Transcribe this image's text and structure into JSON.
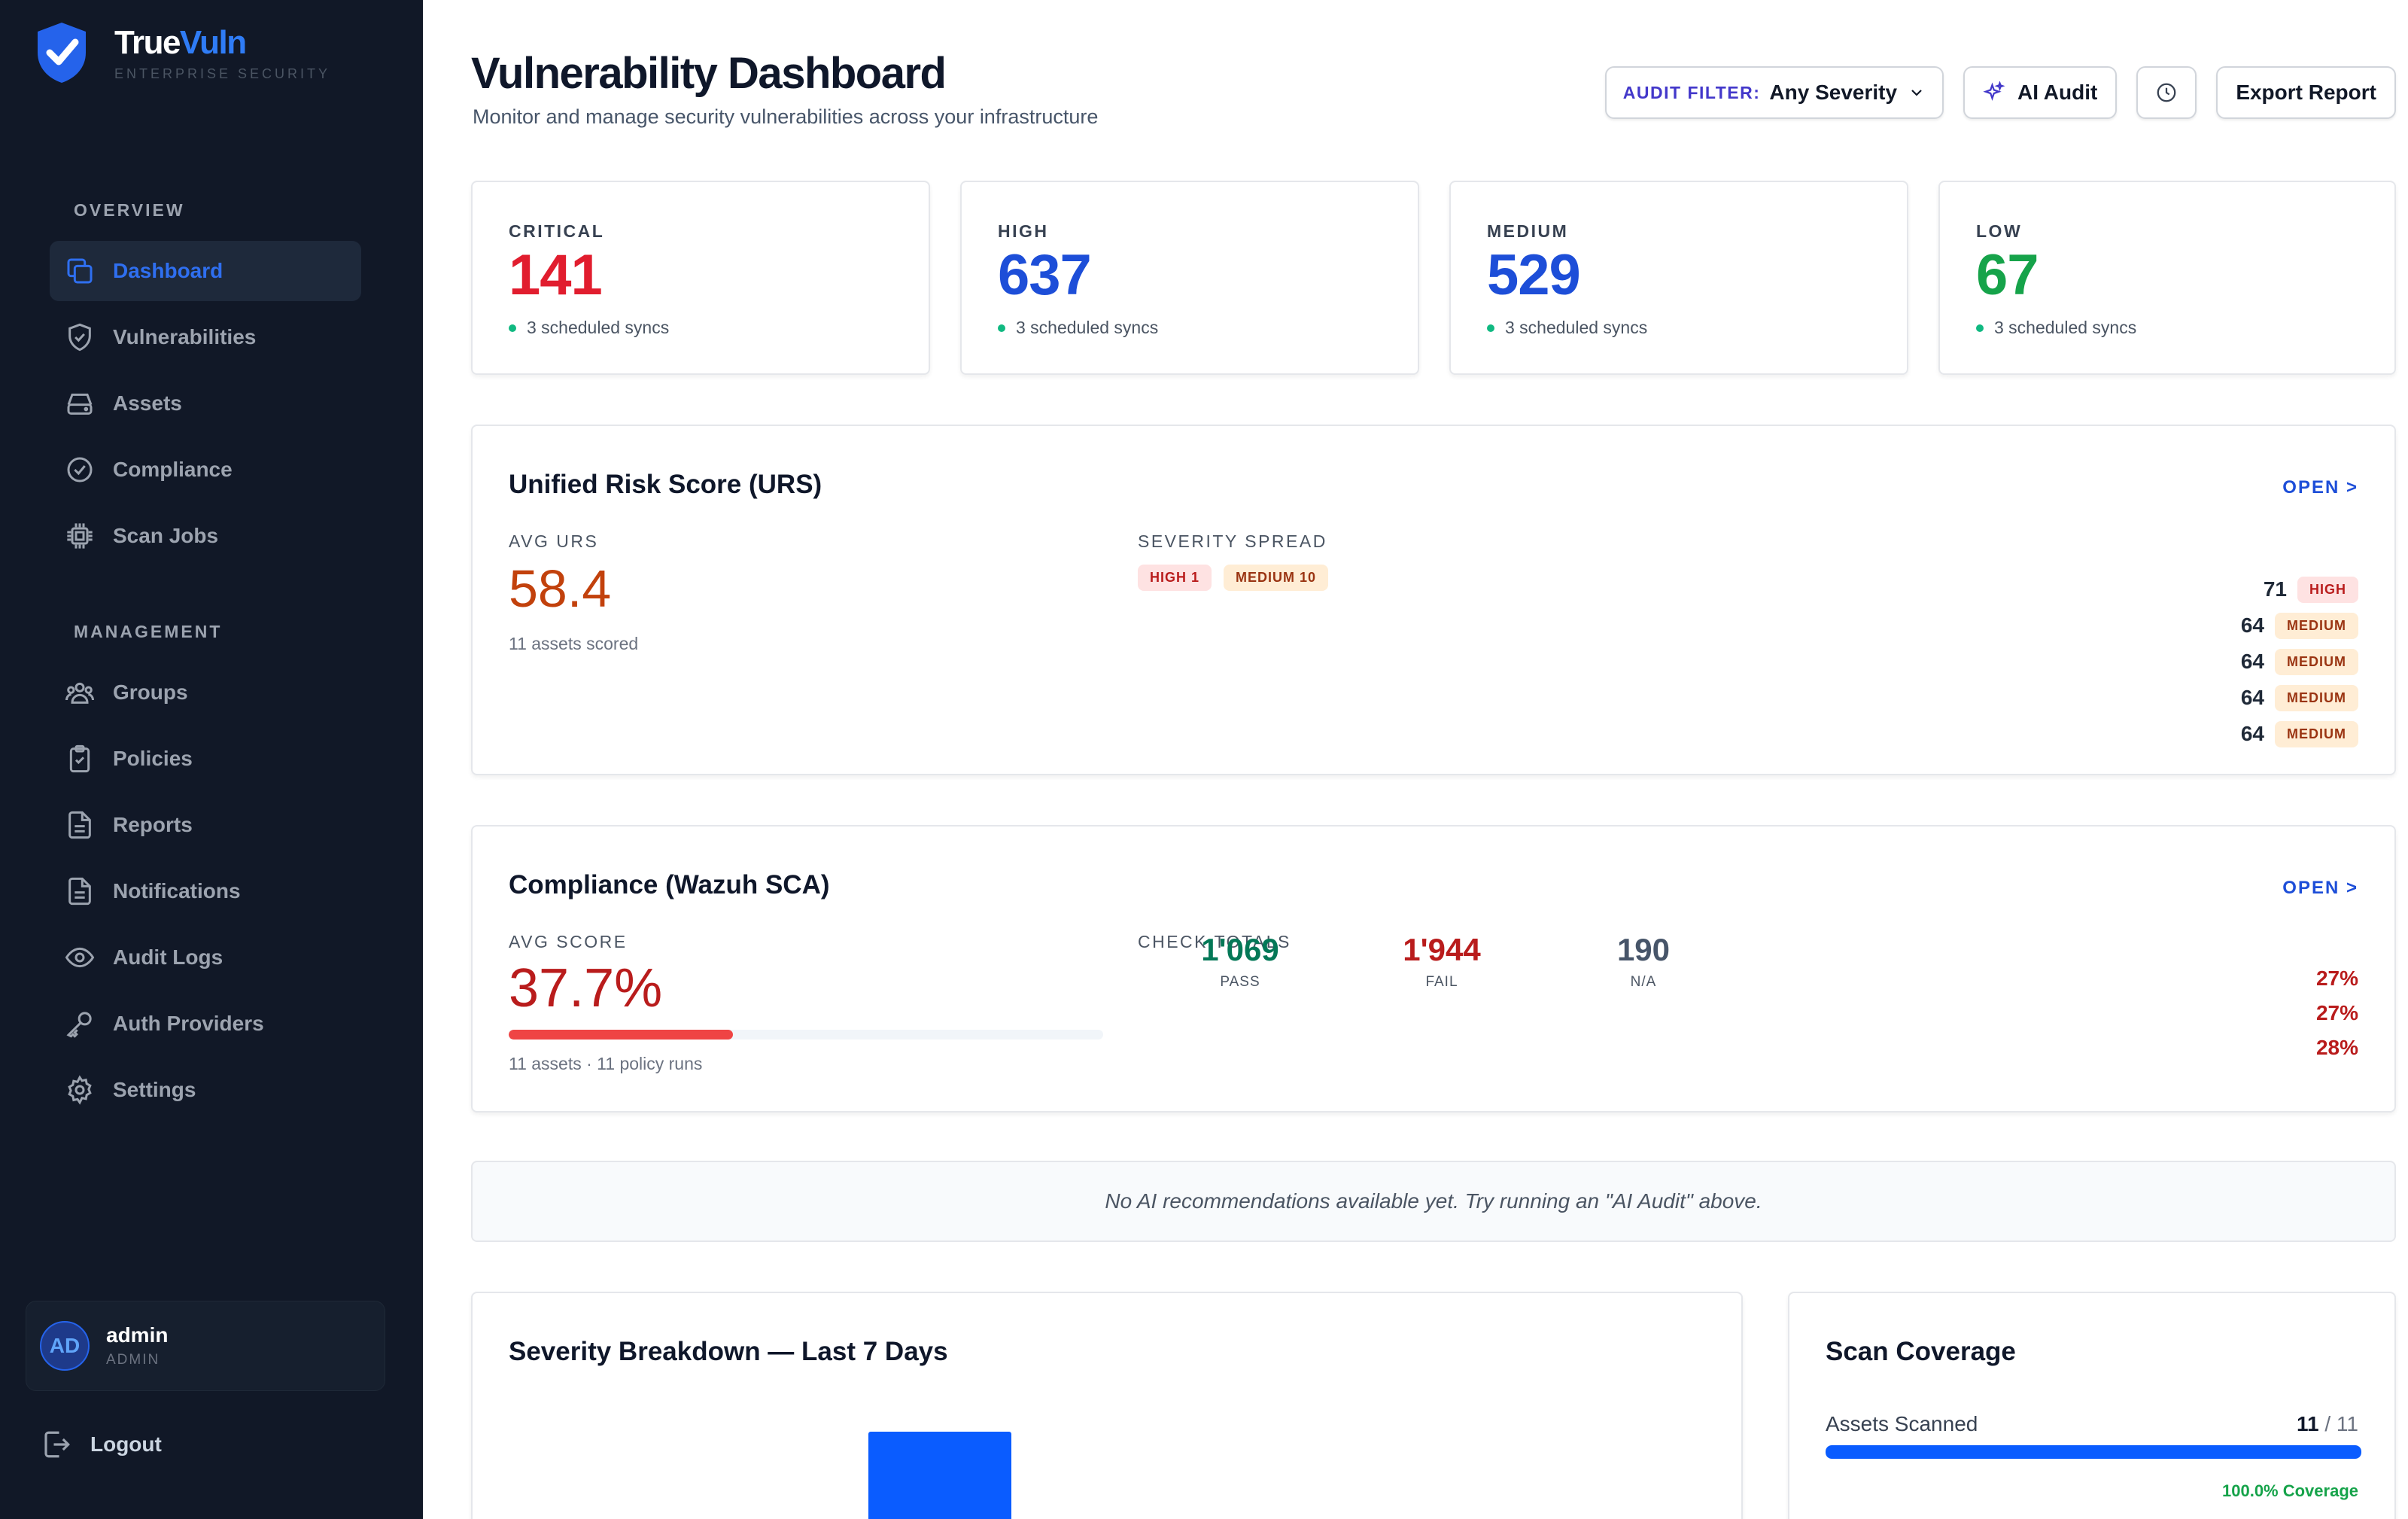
{
  "brand": {
    "name_part1": "True",
    "name_part2": "Vuln",
    "subtitle": "ENTERPRISE SECURITY",
    "accent": "#2f7cf6"
  },
  "sidebar": {
    "sections": [
      {
        "label": "OVERVIEW"
      },
      {
        "label": "MANAGEMENT"
      }
    ],
    "overview_items": [
      {
        "label": "Dashboard",
        "icon": "copy-squares-icon",
        "active": true
      },
      {
        "label": "Vulnerabilities",
        "icon": "shield-icon"
      },
      {
        "label": "Assets",
        "icon": "hard-drive-icon"
      },
      {
        "label": "Compliance",
        "icon": "check-circle-icon"
      },
      {
        "label": "Scan Jobs",
        "icon": "cpu-chip-icon"
      }
    ],
    "management_items": [
      {
        "label": "Groups",
        "icon": "users-icon"
      },
      {
        "label": "Policies",
        "icon": "clipboard-check-icon"
      },
      {
        "label": "Reports",
        "icon": "document-icon"
      },
      {
        "label": "Notifications",
        "icon": "document-icon"
      },
      {
        "label": "Audit Logs",
        "icon": "eye-icon"
      },
      {
        "label": "Auth Providers",
        "icon": "key-icon"
      },
      {
        "label": "Settings",
        "icon": "gear-icon"
      }
    ],
    "user": {
      "initials": "AD",
      "name": "admin",
      "role": "ADMIN"
    },
    "logout_label": "Logout"
  },
  "header": {
    "title": "Vulnerability Dashboard",
    "subtitle": "Monitor and manage security vulnerabilities across your infrastructure",
    "filter_label": "AUDIT FILTER:",
    "filter_value": "Any Severity",
    "ai_audit_label": "AI Audit",
    "export_label": "Export Report"
  },
  "stats": [
    {
      "label": "CRITICAL",
      "value": "141",
      "foot": "3 scheduled syncs",
      "color": "#e11d2e"
    },
    {
      "label": "HIGH",
      "value": "637",
      "foot": "3 scheduled syncs",
      "color": "#1d4ed8"
    },
    {
      "label": "MEDIUM",
      "value": "529",
      "foot": "3 scheduled syncs",
      "color": "#1d4ed8"
    },
    {
      "label": "LOW",
      "value": "67",
      "foot": "3 scheduled syncs",
      "color": "#16a34a"
    }
  ],
  "urs": {
    "title": "Unified Risk Score (URS)",
    "open_label": "OPEN >",
    "avg_label": "AVG URS",
    "avg_value": "58.4",
    "assets_scored": "11 assets scored",
    "spread_label": "SEVERITY SPREAD",
    "spread": [
      {
        "label": "HIGH 1",
        "kind": "high"
      },
      {
        "label": "MEDIUM 10",
        "kind": "med"
      }
    ],
    "top_scores": [
      {
        "score": "71",
        "badge": "HIGH",
        "kind": "high"
      },
      {
        "score": "64",
        "badge": "MEDIUM",
        "kind": "med"
      },
      {
        "score": "64",
        "badge": "MEDIUM",
        "kind": "med"
      },
      {
        "score": "64",
        "badge": "MEDIUM",
        "kind": "med"
      },
      {
        "score": "64",
        "badge": "MEDIUM",
        "kind": "med"
      }
    ]
  },
  "compliance": {
    "title": "Compliance (Wazuh SCA)",
    "open_label": "OPEN >",
    "avg_label": "AVG SCORE",
    "avg_value": "37.7%",
    "avg_fraction": 0.377,
    "runs": "11 assets · 11 policy runs",
    "totals_label": "CHECK TOTALS",
    "totals": [
      {
        "value": "1'069",
        "label": "PASS",
        "color": "#047857"
      },
      {
        "value": "1'944",
        "label": "FAIL",
        "color": "#b91c1c"
      },
      {
        "value": "190",
        "label": "N/A",
        "color": "#475569"
      }
    ],
    "percents": [
      "27%",
      "27%",
      "28%"
    ]
  },
  "ai_message": "No AI recommendations available yet. Try running an \"AI Audit\" above.",
  "severity_breakdown": {
    "title": "Severity Breakdown — Last 7 Days"
  },
  "coverage": {
    "title": "Scan Coverage",
    "label": "Assets Scanned",
    "scanned": "11",
    "total": "/ 11",
    "fraction": 1.0,
    "coverage_text": "100.0% Coverage"
  }
}
